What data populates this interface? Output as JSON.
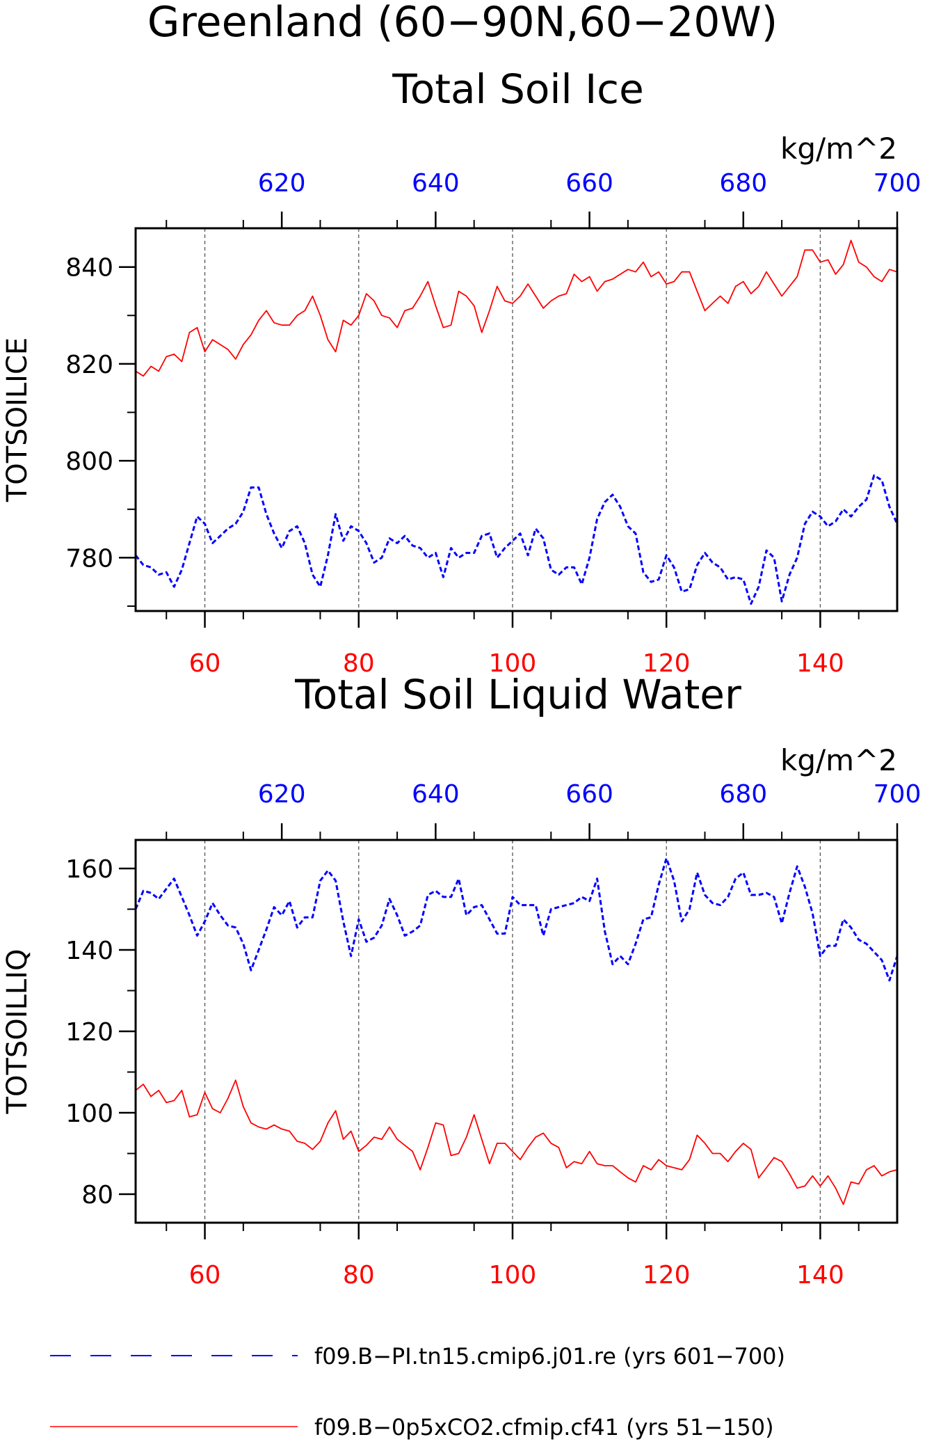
{
  "page": {
    "title": "Greenland (60−90N,60−20W)"
  },
  "chart_data": [
    {
      "type": "line",
      "title": "Total Soil Ice",
      "ylabel": "TOTSOILICE",
      "units": "kg/m^2",
      "xlim_bottom": [
        51,
        150
      ],
      "xlim_top": [
        601,
        700
      ],
      "ylim": [
        769,
        848
      ],
      "x_ticks_bottom": [
        60,
        80,
        100,
        120,
        140
      ],
      "x_ticks_top": [
        620,
        640,
        660,
        680,
        700
      ],
      "y_ticks": [
        780,
        800,
        820,
        840
      ],
      "grid": "vertical dashed at major x ticks",
      "series": [
        {
          "name": "f09.B−0p5xCO2.cfmip.cf41 (yrs 51−150)",
          "color": "#ff0000",
          "dash": "solid",
          "axis": "bottom",
          "x_start": 51,
          "values": [
            818.5,
            817.5,
            819.5,
            818.5,
            821.5,
            822,
            820.5,
            826.5,
            827.5,
            822.5,
            825,
            824,
            823,
            821,
            824,
            826,
            829,
            831,
            828.5,
            828,
            828,
            830,
            831,
            834,
            830,
            825,
            822.5,
            829,
            828,
            830,
            834.5,
            833,
            830,
            829.5,
            827.5,
            831,
            831.5,
            834,
            837,
            832,
            827.5,
            828,
            835,
            834,
            832,
            826.5,
            831,
            836,
            833,
            832.5,
            834,
            836.5,
            834,
            831.5,
            833,
            834,
            834.5,
            838.5,
            837,
            838,
            835,
            837,
            837.5,
            838.5,
            839.5,
            839,
            841,
            838,
            839,
            836.5,
            837,
            839,
            839,
            835,
            831,
            832.5,
            834,
            832.5,
            836,
            837,
            834.5,
            836,
            839,
            836.5,
            834,
            836,
            838,
            843.5,
            843.5,
            841,
            841.5,
            838.5,
            840.5,
            845.5,
            841,
            840,
            838,
            837,
            839.5,
            839
          ]
        },
        {
          "name": "f09.B−PI.tn15.cmip6.j01.re (yrs 601−700)",
          "color": "#0000ff",
          "dash": "dashed",
          "axis": "top",
          "x_start": 601,
          "values": [
            780.5,
            778.5,
            778,
            776.5,
            777,
            774,
            777.5,
            783,
            788.5,
            787,
            783,
            784.5,
            786,
            787,
            789.5,
            794.5,
            794.5,
            789,
            785,
            782,
            785.5,
            786.5,
            783,
            776.5,
            774,
            780.5,
            789,
            783.5,
            786.5,
            785.5,
            783,
            779,
            780,
            784,
            783,
            784.5,
            782.5,
            782,
            780,
            781,
            776,
            782,
            780,
            781,
            781,
            784.5,
            785,
            780,
            782,
            783.5,
            785,
            780.5,
            786,
            784,
            777.5,
            776.5,
            778,
            778,
            774.5,
            780,
            788,
            791.5,
            793,
            790.5,
            786.5,
            785,
            777,
            775,
            775.5,
            780.5,
            778,
            773,
            773.5,
            778.5,
            781,
            779,
            778,
            775.5,
            776,
            775.5,
            770.5,
            774,
            781.5,
            780,
            771,
            776.5,
            780,
            787,
            789.5,
            788.5,
            786.5,
            787.5,
            790,
            788.5,
            790.5,
            792,
            797,
            796,
            790.5,
            787
          ]
        }
      ]
    },
    {
      "type": "line",
      "title": "Total Soil Liquid Water",
      "ylabel": "TOTSOILLIQ",
      "units": "kg/m^2",
      "xlim_bottom": [
        51,
        150
      ],
      "xlim_top": [
        601,
        700
      ],
      "ylim": [
        73,
        167
      ],
      "x_ticks_bottom": [
        60,
        80,
        100,
        120,
        140
      ],
      "x_ticks_top": [
        620,
        640,
        660,
        680,
        700
      ],
      "y_ticks": [
        80,
        100,
        120,
        140,
        160
      ],
      "grid": "vertical dashed at major x ticks",
      "series": [
        {
          "name": "f09.B−0p5xCO2.cfmip.cf41 (yrs 51−150)",
          "color": "#ff0000",
          "dash": "solid",
          "axis": "bottom",
          "x_start": 51,
          "values": [
            105.5,
            107,
            104,
            105.5,
            102.5,
            103,
            105.5,
            99,
            99.5,
            105,
            101,
            100,
            103.5,
            108,
            101.5,
            97.5,
            96.5,
            96,
            97,
            96,
            95.5,
            93,
            92.5,
            91,
            93,
            97.5,
            100.5,
            93.5,
            95.5,
            90.5,
            92,
            94,
            93.5,
            96.5,
            93.5,
            92,
            90.5,
            86,
            91.5,
            97.5,
            97,
            89.5,
            90,
            94,
            99.5,
            93.5,
            87.5,
            92.5,
            92.5,
            90.5,
            88.5,
            91.5,
            94,
            95,
            92.5,
            91.5,
            86.5,
            88,
            87.5,
            90.5,
            87.5,
            87,
            87,
            85.5,
            84,
            83,
            87,
            86,
            88.5,
            87,
            86.5,
            86,
            88.5,
            94.5,
            92.5,
            90,
            90,
            88,
            90.5,
            92.5,
            91,
            84,
            86.5,
            89,
            88,
            85,
            81.5,
            82,
            84.5,
            82,
            84.5,
            81.5,
            77.5,
            83,
            82.5,
            86,
            87,
            84.5,
            85.5,
            86
          ]
        },
        {
          "name": "f09.B−PI.tn15.cmip6.j01.re (yrs 601−700)",
          "color": "#0000ff",
          "dash": "dashed",
          "axis": "top",
          "x_start": 601,
          "values": [
            150,
            154.5,
            154,
            152.5,
            155,
            157.5,
            153,
            148.5,
            143.5,
            147,
            151.5,
            148.5,
            146,
            145.5,
            141.5,
            135,
            140,
            145,
            150.5,
            148.5,
            152,
            145.5,
            148,
            148,
            157,
            159.5,
            157,
            147,
            138.5,
            147.5,
            142,
            143,
            146,
            152.5,
            148.5,
            143.5,
            144.5,
            146,
            153.5,
            154.5,
            153,
            153,
            157.5,
            148.5,
            150.5,
            151,
            147.5,
            144,
            144,
            153,
            151,
            151,
            151,
            143.5,
            150,
            150.5,
            151,
            151.5,
            153,
            152,
            157.5,
            144.5,
            136.5,
            138.5,
            136.5,
            141.5,
            147.5,
            148,
            156,
            162.5,
            157,
            147,
            150,
            159,
            153.5,
            151.5,
            151,
            153,
            157.5,
            159,
            153.5,
            153.5,
            154,
            153,
            146.5,
            154,
            160.5,
            155.5,
            149,
            138.5,
            141,
            141,
            147.5,
            145.5,
            142.5,
            141.5,
            139.5,
            137.5,
            132.5,
            138.5
          ]
        }
      ]
    }
  ],
  "legend": [
    {
      "label": "f09.B−PI.tn15.cmip6.j01.re (yrs 601−700)",
      "color": "#0000ff",
      "dash": "dashed"
    },
    {
      "label": "f09.B−0p5xCO2.cfmip.cf41 (yrs 51−150)",
      "color": "#ff0000",
      "dash": "solid"
    }
  ],
  "colors": {
    "primary": "#ff0000",
    "secondary": "#0000ff",
    "axis": "#000000"
  }
}
